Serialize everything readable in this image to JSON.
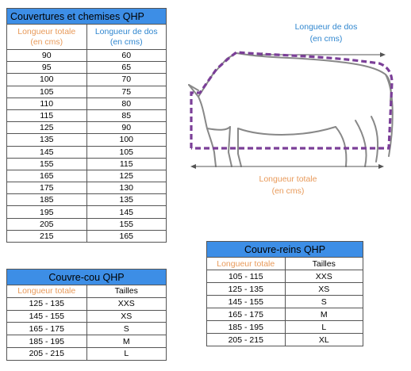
{
  "main_table": {
    "title": "Couvertures et chemises QHP",
    "col1_header": "Longueur totale",
    "col1_unit": "(en cms)",
    "col2_header": "Longueur de dos",
    "col2_unit": "(en cms)",
    "rows": [
      [
        "90",
        "60"
      ],
      [
        "95",
        "65"
      ],
      [
        "100",
        "70"
      ],
      [
        "105",
        "75"
      ],
      [
        "110",
        "80"
      ],
      [
        "115",
        "85"
      ],
      [
        "125",
        "90"
      ],
      [
        "135",
        "100"
      ],
      [
        "145",
        "105"
      ],
      [
        "155",
        "115"
      ],
      [
        "165",
        "125"
      ],
      [
        "175",
        "130"
      ],
      [
        "185",
        "135"
      ],
      [
        "195",
        "145"
      ],
      [
        "205",
        "155"
      ],
      [
        "215",
        "165"
      ]
    ]
  },
  "cou_table": {
    "title": "Couvre-cou QHP",
    "col1_header": "Longueur totale",
    "col2_header": "Tailles",
    "rows": [
      [
        "125 - 135",
        "XXS"
      ],
      [
        "145 - 155",
        "XS"
      ],
      [
        "165 - 175",
        "S"
      ],
      [
        "185 - 195",
        "M"
      ],
      [
        "205 - 215",
        "L"
      ]
    ]
  },
  "reins_table": {
    "title": "Couvre-reins QHP",
    "col1_header": "Longueur totale",
    "col2_header": "Tailles",
    "rows": [
      [
        "105 - 115",
        "XXS"
      ],
      [
        "125 - 135",
        "XS"
      ],
      [
        "145 - 155",
        "S"
      ],
      [
        "165 - 175",
        "M"
      ],
      [
        "185 - 195",
        "L"
      ],
      [
        "205 - 215",
        "XL"
      ]
    ]
  },
  "diagram": {
    "back_length_label": "Longueur de dos",
    "back_length_unit": "(en cms)",
    "total_length_label": "Longueur totale",
    "total_length_unit": "(en cms)"
  },
  "colors": {
    "header_blue": "#3d8ee6",
    "orange_text": "#e89a5a",
    "blue_text": "#2f86cf",
    "blanket_outline": "#7b3f98",
    "horse_outline": "#888888"
  }
}
